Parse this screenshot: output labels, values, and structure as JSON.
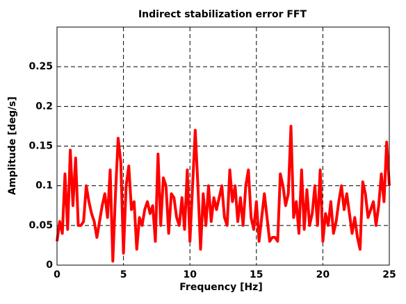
{
  "chart_data": {
    "type": "line",
    "title": "Indirect stabilization error FFT",
    "xlabel": "Frequency [Hz]",
    "ylabel": "Amplitude [deg/s]",
    "xlim": [
      0,
      25
    ],
    "ylim": [
      0,
      0.3
    ],
    "xticks": [
      0,
      5,
      10,
      15,
      20,
      25
    ],
    "yticks": [
      0,
      0.05,
      0.1,
      0.15,
      0.2,
      0.25
    ],
    "grid": true,
    "x": [
      0,
      0.2,
      0.4,
      0.6,
      0.8,
      1,
      1.2,
      1.4,
      1.6,
      1.8,
      2,
      2.2,
      2.4,
      2.6,
      2.8,
      3,
      3.2,
      3.4,
      3.6,
      3.8,
      4,
      4.2,
      4.4,
      4.6,
      4.8,
      5,
      5.2,
      5.4,
      5.6,
      5.8,
      6,
      6.2,
      6.4,
      6.6,
      6.8,
      7,
      7.2,
      7.4,
      7.6,
      7.8,
      8,
      8.2,
      8.4,
      8.6,
      8.8,
      9,
      9.2,
      9.4,
      9.6,
      9.8,
      10,
      10.2,
      10.4,
      10.6,
      10.8,
      11,
      11.2,
      11.4,
      11.6,
      11.8,
      12,
      12.2,
      12.4,
      12.6,
      12.8,
      13,
      13.2,
      13.4,
      13.6,
      13.8,
      14,
      14.2,
      14.4,
      14.6,
      14.8,
      15,
      15.2,
      15.4,
      15.6,
      15.8,
      16,
      16.2,
      16.4,
      16.6,
      16.8,
      17,
      17.2,
      17.4,
      17.6,
      17.8,
      18,
      18.2,
      18.4,
      18.6,
      18.8,
      19,
      19.2,
      19.4,
      19.6,
      19.8,
      20,
      20.2,
      20.4,
      20.6,
      20.8,
      21,
      21.2,
      21.4,
      21.6,
      21.8,
      22,
      22.2,
      22.4,
      22.6,
      22.8,
      23,
      23.2,
      23.4,
      23.6,
      23.8,
      24,
      24.2,
      24.4,
      24.6,
      24.8,
      25
    ],
    "series": [
      {
        "name": "FFT",
        "color": "#ff0000",
        "values": [
          0.03,
          0.055,
          0.04,
          0.115,
          0.045,
          0.145,
          0.075,
          0.135,
          0.05,
          0.05,
          0.055,
          0.1,
          0.08,
          0.065,
          0.055,
          0.035,
          0.055,
          0.075,
          0.09,
          0.06,
          0.12,
          0.005,
          0.09,
          0.16,
          0.13,
          0.015,
          0.1,
          0.125,
          0.07,
          0.08,
          0.02,
          0.06,
          0.05,
          0.07,
          0.08,
          0.065,
          0.075,
          0.03,
          0.14,
          0.05,
          0.11,
          0.1,
          0.04,
          0.09,
          0.085,
          0.06,
          0.05,
          0.085,
          0.045,
          0.12,
          0.03,
          0.1,
          0.17,
          0.1,
          0.02,
          0.09,
          0.05,
          0.1,
          0.055,
          0.085,
          0.07,
          0.085,
          0.1,
          0.06,
          0.05,
          0.12,
          0.08,
          0.1,
          0.055,
          0.085,
          0.05,
          0.1,
          0.12,
          0.06,
          0.045,
          0.08,
          0.03,
          0.06,
          0.09,
          0.06,
          0.03,
          0.035,
          0.035,
          0.03,
          0.115,
          0.1,
          0.075,
          0.09,
          0.175,
          0.06,
          0.08,
          0.04,
          0.12,
          0.045,
          0.095,
          0.05,
          0.065,
          0.1,
          0.05,
          0.12,
          0.03,
          0.065,
          0.05,
          0.08,
          0.04,
          0.055,
          0.08,
          0.1,
          0.07,
          0.09,
          0.065,
          0.04,
          0.06,
          0.035,
          0.02,
          0.105,
          0.09,
          0.06,
          0.07,
          0.08,
          0.05,
          0.075,
          0.115,
          0.08,
          0.155,
          0.1
        ]
      }
    ]
  }
}
